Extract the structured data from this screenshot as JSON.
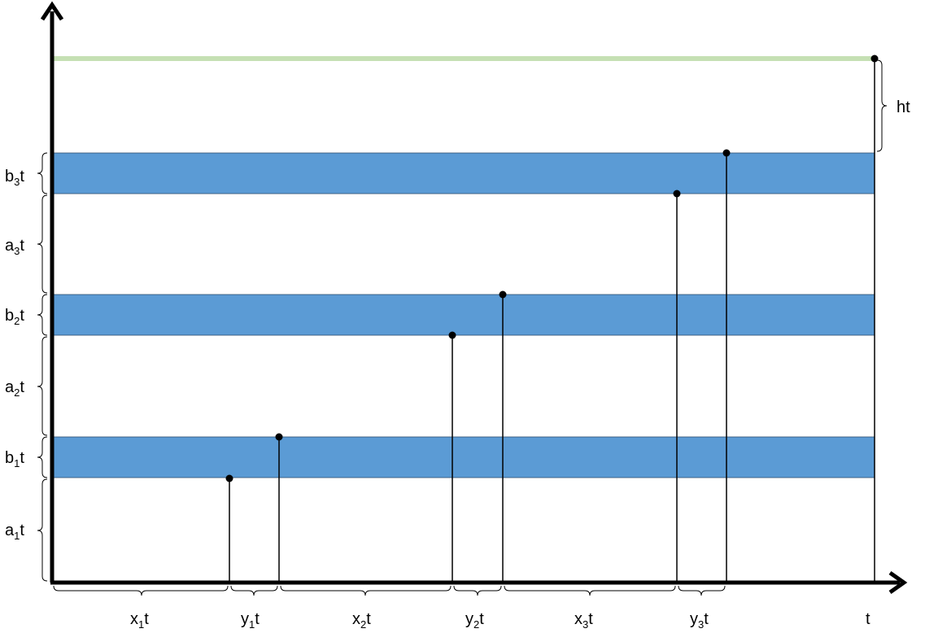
{
  "bands": [
    {
      "label_base": "b",
      "label_sub": "3",
      "label_tail": "t",
      "color": "#5b9bd5"
    },
    {
      "label_base": "b",
      "label_sub": "2",
      "label_tail": "t",
      "color": "#5b9bd5"
    },
    {
      "label_base": "b",
      "label_sub": "1",
      "label_tail": "t",
      "color": "#5b9bd5"
    }
  ],
  "gaps": [
    {
      "label_base": "a",
      "label_sub": "3",
      "label_tail": "t"
    },
    {
      "label_base": "a",
      "label_sub": "2",
      "label_tail": "t"
    },
    {
      "label_base": "a",
      "label_sub": "1",
      "label_tail": "t"
    }
  ],
  "top_line": {
    "color": "#c5e0b4"
  },
  "h_label": "ht",
  "x_segments": [
    {
      "label_base": "x",
      "label_sub": "1",
      "label_tail": "t"
    },
    {
      "label_base": "y",
      "label_sub": "1",
      "label_tail": "t"
    },
    {
      "label_base": "x",
      "label_sub": "2",
      "label_tail": "t"
    },
    {
      "label_base": "y",
      "label_sub": "2",
      "label_tail": "t"
    },
    {
      "label_base": "x",
      "label_sub": "3",
      "label_tail": "t"
    },
    {
      "label_base": "y",
      "label_sub": "3",
      "label_tail": "t"
    }
  ],
  "t_label": "t"
}
